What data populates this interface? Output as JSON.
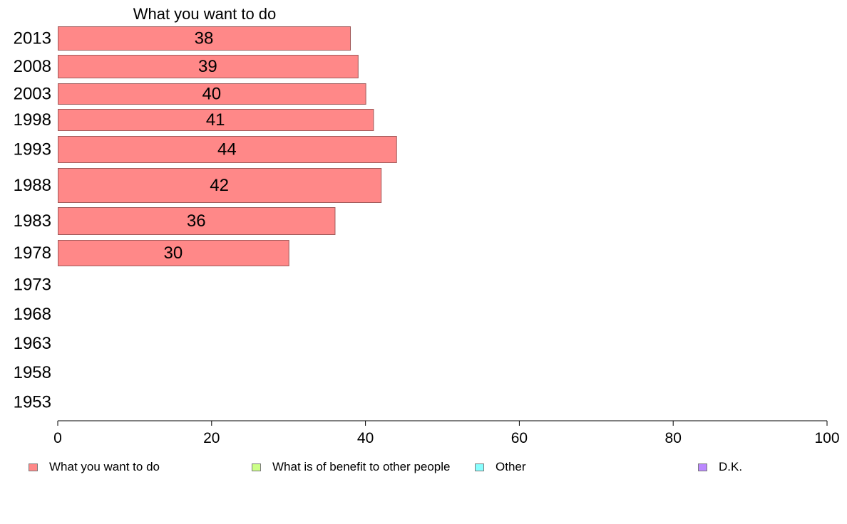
{
  "chart_data": {
    "type": "bar",
    "orientation": "horizontal",
    "title": "What you want to do",
    "categories": [
      "2013",
      "2008",
      "2003",
      "1998",
      "1993",
      "1988",
      "1983",
      "1978",
      "1973",
      "1968",
      "1963",
      "1958",
      "1953"
    ],
    "series": [
      {
        "name": "What you want to do",
        "color": "#ff8888",
        "values": [
          38,
          39,
          40,
          41,
          44,
          42,
          36,
          30,
          null,
          null,
          null,
          null,
          null
        ]
      },
      {
        "name": "What is of benefit to other people",
        "color": "#ccff88",
        "values": [
          null,
          null,
          null,
          null,
          null,
          null,
          null,
          null,
          null,
          null,
          null,
          null,
          null
        ]
      },
      {
        "name": "Other",
        "color": "#88ffff",
        "values": [
          null,
          null,
          null,
          null,
          null,
          null,
          null,
          null,
          null,
          null,
          null,
          null,
          null
        ]
      },
      {
        "name": "D.K.",
        "color": "#bb88ff",
        "values": [
          null,
          null,
          null,
          null,
          null,
          null,
          null,
          null,
          null,
          null,
          null,
          null,
          null
        ]
      }
    ],
    "xlim": [
      0,
      100
    ],
    "xticks": [
      "0",
      "20",
      "40",
      "60",
      "80",
      "100"
    ],
    "grid": false,
    "legend_position": "bottom"
  }
}
